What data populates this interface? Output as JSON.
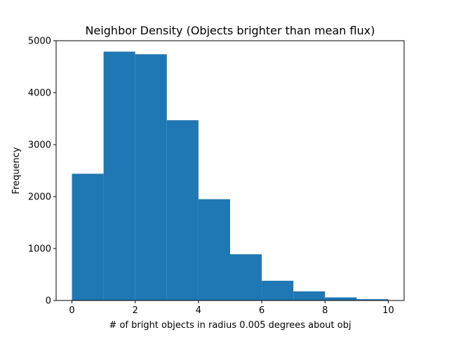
{
  "chart_data": {
    "type": "bar",
    "title": "Neighbor Density (Objects brighter than mean flux)",
    "xlabel": "# of bright objects in radius 0.005 degrees about obj",
    "ylabel": "Frequency",
    "bin_edges": [
      0,
      1,
      2,
      3,
      4,
      5,
      6,
      7,
      8,
      9,
      10
    ],
    "values": [
      2440,
      4790,
      4740,
      3470,
      1950,
      890,
      380,
      175,
      60,
      25
    ],
    "xlim": [
      -0.5,
      10.5
    ],
    "ylim": [
      0,
      5000
    ],
    "xticks": [
      0,
      2,
      4,
      6,
      8,
      10
    ],
    "yticks": [
      0,
      1000,
      2000,
      3000,
      4000,
      5000
    ],
    "grid": false,
    "bar_color": "#1f77b4"
  }
}
